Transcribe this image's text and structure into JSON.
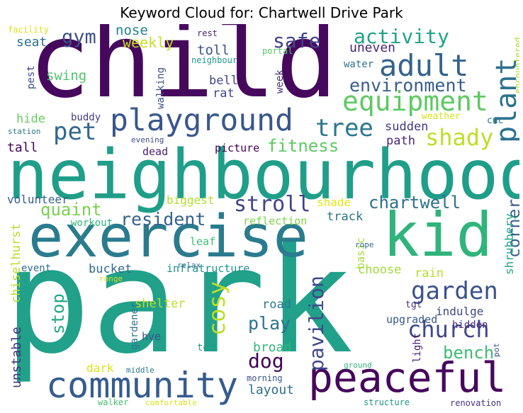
{
  "chart_data": {
    "type": "word_cloud",
    "title": "Keyword Cloud for: Chartwell Drive Park",
    "words": [
      {
        "text": "park",
        "weight": 1.0,
        "color": "#21a08a"
      },
      {
        "text": "child",
        "weight": 0.8,
        "color": "#46085c"
      },
      {
        "text": "neighbourhood",
        "weight": 0.75,
        "color": "#1f9e89"
      },
      {
        "text": "exercise",
        "weight": 0.6,
        "color": "#2a7b8e"
      },
      {
        "text": "kid",
        "weight": 0.55,
        "color": "#2fb47c"
      },
      {
        "text": "peaceful",
        "weight": 0.45,
        "color": "#46085c"
      },
      {
        "text": "community",
        "weight": 0.45,
        "color": "#365c8d"
      },
      {
        "text": "playground",
        "weight": 0.38,
        "color": "#39568c"
      },
      {
        "text": "plant",
        "weight": 0.33,
        "color": "#2c728e"
      },
      {
        "text": "adult",
        "weight": 0.33,
        "color": "#33638d"
      },
      {
        "text": "equipment",
        "weight": 0.3,
        "color": "#5ec962"
      },
      {
        "text": "pet",
        "weight": 0.3,
        "color": "#31688e"
      },
      {
        "text": "tree",
        "weight": 0.28,
        "color": "#2a768e"
      },
      {
        "text": "garden",
        "weight": 0.27,
        "color": "#3b528b"
      },
      {
        "text": "church",
        "weight": 0.27,
        "color": "#3e4989"
      },
      {
        "text": "shady",
        "weight": 0.26,
        "color": "#bddf26"
      },
      {
        "text": "cosy",
        "weight": 0.26,
        "color": "#bddf26"
      },
      {
        "text": "pavilion",
        "weight": 0.26,
        "color": "#3f4889"
      },
      {
        "text": "stroll",
        "weight": 0.25,
        "color": "#404387"
      },
      {
        "text": "dog",
        "weight": 0.22,
        "color": "#440154"
      },
      {
        "text": "activity",
        "weight": 0.22,
        "color": "#20a386"
      },
      {
        "text": "safe",
        "weight": 0.22,
        "color": "#414487"
      },
      {
        "text": "environment",
        "weight": 0.2,
        "color": "#365d8d"
      },
      {
        "text": "gym",
        "weight": 0.2,
        "color": "#3b528b"
      },
      {
        "text": "chartwell",
        "weight": 0.2,
        "color": "#2d708e"
      },
      {
        "text": "resident",
        "weight": 0.2,
        "color": "#34618d"
      },
      {
        "text": "quaint",
        "weight": 0.2,
        "color": "#7ad151"
      },
      {
        "text": "fitness",
        "weight": 0.2,
        "color": "#5ec962"
      },
      {
        "text": "play",
        "weight": 0.2,
        "color": "#2c728e"
      },
      {
        "text": "bench",
        "weight": 0.2,
        "color": "#3dbc74"
      },
      {
        "text": "stop",
        "weight": 0.2,
        "color": "#22a785"
      },
      {
        "text": "corner",
        "weight": 0.2,
        "color": "#365d8d"
      },
      {
        "text": "layout",
        "weight": 0.16,
        "color": "#2e6e8e"
      },
      {
        "text": "broad",
        "weight": 0.16,
        "color": "#35b779"
      },
      {
        "text": "unstable",
        "weight": 0.14,
        "color": "#462f7c"
      },
      {
        "text": "chiselhurst",
        "weight": 0.14,
        "color": "#b8de29"
      },
      {
        "text": "shrubbery",
        "weight": 0.13,
        "color": "#22a884"
      },
      {
        "text": "weekly",
        "weight": 0.15,
        "color": "#c2df23"
      },
      {
        "text": "nose",
        "weight": 0.14,
        "color": "#25838e"
      },
      {
        "text": "seat",
        "weight": 0.14,
        "color": "#2d708e"
      },
      {
        "text": "toll",
        "weight": 0.14,
        "color": "#38588c"
      },
      {
        "text": "swing",
        "weight": 0.14,
        "color": "#50c46a"
      },
      {
        "text": "bell",
        "weight": 0.13,
        "color": "#3f4889"
      },
      {
        "text": "rat",
        "weight": 0.13,
        "color": "#414487"
      },
      {
        "text": "uneven",
        "weight": 0.13,
        "color": "#482576"
      },
      {
        "text": "hide",
        "weight": 0.13,
        "color": "#67cc5c"
      },
      {
        "text": "tall",
        "weight": 0.13,
        "color": "#440154"
      },
      {
        "text": "sudden",
        "weight": 0.13,
        "color": "#443983"
      },
      {
        "text": "path",
        "weight": 0.13,
        "color": "#482878"
      },
      {
        "text": "shade",
        "weight": 0.13,
        "color": "#e5e419"
      },
      {
        "text": "track",
        "weight": 0.13,
        "color": "#2b758e"
      },
      {
        "text": "biggest",
        "weight": 0.12,
        "color": "#b2dd2d"
      },
      {
        "text": "volunteer",
        "weight": 0.12,
        "color": "#355f8d"
      },
      {
        "text": "workout",
        "weight": 0.12,
        "color": "#2fb47c"
      },
      {
        "text": "bucket",
        "weight": 0.13,
        "color": "#31688e"
      },
      {
        "text": "event",
        "weight": 0.11,
        "color": "#2d708e"
      },
      {
        "text": "infratructure",
        "weight": 0.12,
        "color": "#21918c"
      },
      {
        "text": "choose",
        "weight": 0.12,
        "color": "#a0da39"
      },
      {
        "text": "rain",
        "weight": 0.12,
        "color": "#b5de2b"
      },
      {
        "text": "basic",
        "weight": 0.12,
        "color": "#a5db36"
      },
      {
        "text": "shelter",
        "weight": 0.12,
        "color": "#bddf26"
      },
      {
        "text": "road",
        "weight": 0.12,
        "color": "#2a788e"
      },
      {
        "text": "indulge",
        "weight": 0.12,
        "color": "#3e4a89"
      },
      {
        "text": "hidden",
        "weight": 0.11,
        "color": "#482878"
      },
      {
        "text": "upgraded",
        "weight": 0.12,
        "color": "#38588c"
      },
      {
        "text": "tgt",
        "weight": 0.11,
        "color": "#46327e"
      },
      {
        "text": "dark",
        "weight": 0.12,
        "color": "#dde318"
      },
      {
        "text": "reflection",
        "weight": 0.11,
        "color": "#7fd34e"
      },
      {
        "text": "leaf",
        "weight": 0.11,
        "color": "#3fbc73"
      },
      {
        "text": "picture",
        "weight": 0.11,
        "color": "#440154"
      },
      {
        "text": "dead",
        "weight": 0.1,
        "color": "#482173"
      },
      {
        "text": "buddy",
        "weight": 0.1,
        "color": "#433e85"
      },
      {
        "text": "walking",
        "weight": 0.1,
        "color": "#3b528b"
      },
      {
        "text": "week",
        "weight": 0.1,
        "color": "#46327e"
      },
      {
        "text": "water",
        "weight": 0.1,
        "color": "#2c728e"
      },
      {
        "text": "pest",
        "weight": 0.1,
        "color": "#3e4989"
      },
      {
        "text": "facility",
        "weight": 0.08,
        "color": "#dde318"
      },
      {
        "text": "rest",
        "weight": 0.08,
        "color": "#482173"
      },
      {
        "text": "neighbour",
        "weight": 0.08,
        "color": "#1f9a8a"
      },
      {
        "text": "portal",
        "weight": 0.08,
        "color": "#56c667"
      },
      {
        "text": "encountered",
        "weight": 0.09,
        "color": "#addc30"
      },
      {
        "text": "weather",
        "weight": 0.1,
        "color": "#d2e21b"
      },
      {
        "text": "cnc",
        "weight": 0.1,
        "color": "#2d708e"
      },
      {
        "text": "station",
        "weight": 0.08,
        "color": "#2a788e"
      },
      {
        "text": "evening",
        "weight": 0.08,
        "color": "#3d4d8a"
      },
      {
        "text": "range",
        "weight": 0.08,
        "color": "#c8e020"
      },
      {
        "text": "relax",
        "weight": 0.08,
        "color": "#2c728e"
      },
      {
        "text": "rope",
        "weight": 0.08,
        "color": "#31688e"
      },
      {
        "text": "gardener",
        "weight": 0.1,
        "color": "#2c728e"
      },
      {
        "text": "hve",
        "weight": 0.11,
        "color": "#3b528b"
      },
      {
        "text": "ton",
        "weight": 0.1,
        "color": "#1f9e89"
      },
      {
        "text": "light",
        "weight": 0.1,
        "color": "#481a6c"
      },
      {
        "text": "middle",
        "weight": 0.08,
        "color": "#2a788e"
      },
      {
        "text": "morning",
        "weight": 0.09,
        "color": "#3a548c"
      },
      {
        "text": "ground",
        "weight": 0.08,
        "color": "#2fb47c"
      },
      {
        "text": "pot",
        "weight": 0.08,
        "color": "#3b528b"
      },
      {
        "text": "walker",
        "weight": 0.09,
        "color": "#4ac16d"
      },
      {
        "text": "comfortable",
        "weight": 0.08,
        "color": "#d8e219"
      },
      {
        "text": "structure",
        "weight": 0.09,
        "color": "#1f958b"
      },
      {
        "text": "renovation",
        "weight": 0.09,
        "color": "#46327e"
      }
    ]
  }
}
